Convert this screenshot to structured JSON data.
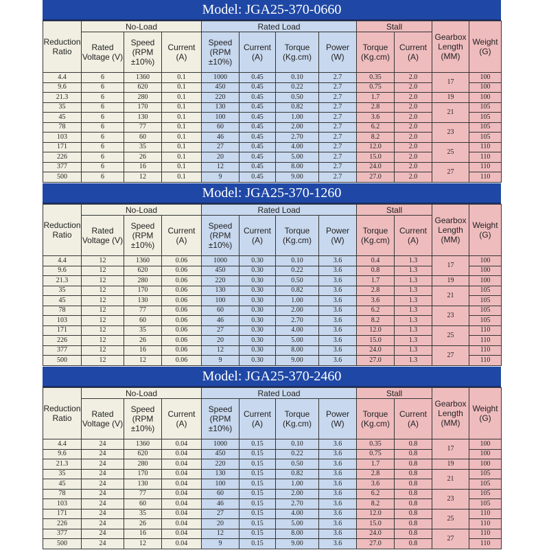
{
  "header_labels": {
    "model_prefix": "Model:",
    "no_load": "No-Load",
    "rated_load": "Rated Load",
    "stall": "Stall",
    "reduction_ratio": "Reduction Ratio",
    "rated_voltage": "Rated Voltage (V)",
    "speed_rpm": "Speed (RPM ±10%)",
    "current_a": "Current (A)",
    "torque": "Torque (Kg.cm)",
    "power": "Power (W)",
    "gearbox_length": "Gearbox Length (MM)",
    "weight": "Weight (G)"
  },
  "colors": {
    "title_bg": "#1f48a6",
    "no_load": "#f0efe2",
    "rated_load": "#c8d8ee",
    "stall": "#efbcbe"
  },
  "ratios": [
    "4.4",
    "9.6",
    "21.3",
    "35",
    "45",
    "78",
    "103",
    "171",
    "226",
    "377",
    "500"
  ],
  "noload_speed": [
    "1360",
    "620",
    "280",
    "170",
    "130",
    "77",
    "60",
    "35",
    "26",
    "16",
    "12"
  ],
  "rated_speed": [
    "1000",
    "450",
    "220",
    "130",
    "100",
    "60",
    "46",
    "27",
    "20",
    "12",
    "9"
  ],
  "rated_torque": [
    "0.10",
    "0.22",
    "0.50",
    "0.82",
    "1.00",
    "2.00",
    "2.70",
    "4.00",
    "5.00",
    "8.00",
    "9.00"
  ],
  "gearbox_lengths": [
    {
      "value": "17",
      "rows": 2
    },
    {
      "value": "19",
      "rows": 1
    },
    {
      "value": "21",
      "rows": 2
    },
    {
      "value": "23",
      "rows": 2
    },
    {
      "value": "25",
      "rows": 2
    },
    {
      "value": "27",
      "rows": 2
    }
  ],
  "weights": [
    "100",
    "100",
    "100",
    "105",
    "105",
    "105",
    "105",
    "110",
    "110",
    "110",
    "110"
  ],
  "models": [
    {
      "name": "JGA25-370-0660",
      "voltage": "6",
      "noload_current": "0.1",
      "rated_current": "0.45",
      "power": "2.7",
      "stall_current": "2.0",
      "stall_torque": [
        "0.35",
        "0.75",
        "1.7",
        "2.8",
        "3.6",
        "6.2",
        "8.2",
        "12.0",
        "15.0",
        "24.0",
        "27.0"
      ]
    },
    {
      "name": "JGA25-370-1260",
      "voltage": "12",
      "noload_current": "0.06",
      "rated_current": "0.30",
      "power": "3.6",
      "stall_current": "1.3",
      "stall_torque": [
        "0.4",
        "0.8",
        "1.7",
        "2.8",
        "3.6",
        "6.2",
        "8.2",
        "12.0",
        "15.0",
        "24.0",
        "27.0"
      ]
    },
    {
      "name": "JGA25-370-2460",
      "voltage": "24",
      "noload_current": "0.04",
      "rated_current": "0.15",
      "power": "3.6",
      "stall_current": "0.8",
      "stall_torque": [
        "0.35",
        "0.75",
        "1.7",
        "2.8",
        "3.6",
        "6.2",
        "8.2",
        "12.0",
        "15.0",
        "24.0",
        "27.0"
      ]
    }
  ]
}
